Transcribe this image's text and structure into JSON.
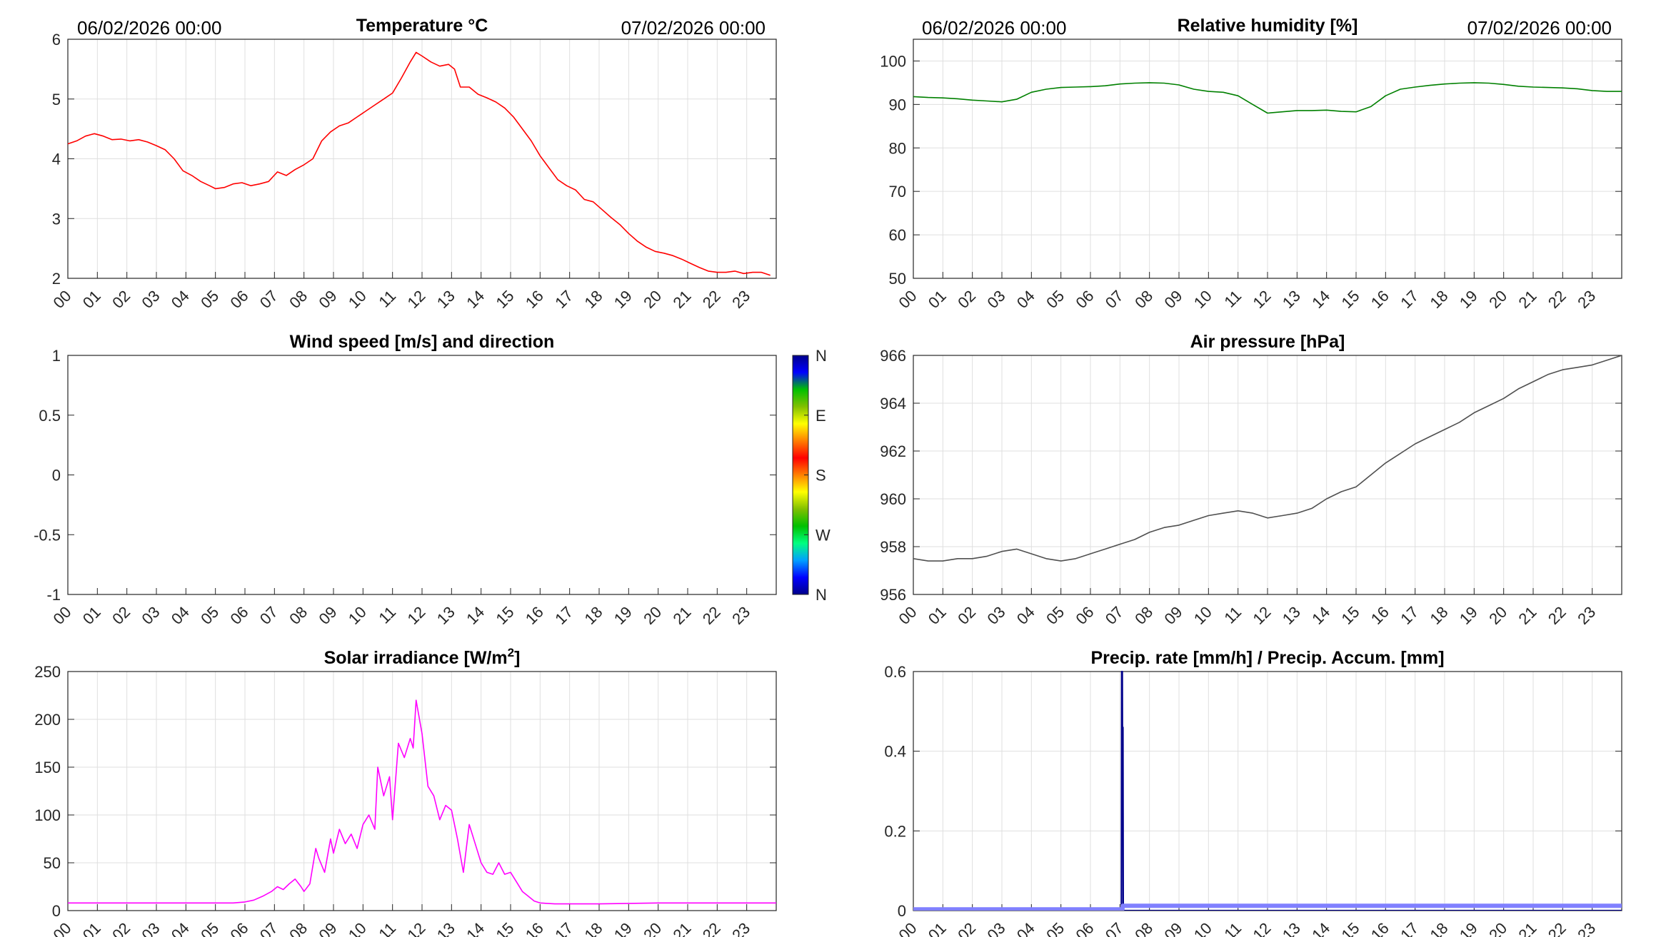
{
  "page": {
    "background": "#ffffff"
  },
  "chart_data": [
    {
      "id": "temp",
      "type": "line",
      "title": "Temperature °C",
      "date_left": "06/02/2026 00:00",
      "date_right": "07/02/2026 00:00",
      "color": "#ff0000",
      "xlim": [
        0,
        24
      ],
      "ylim": [
        2,
        6
      ],
      "yticks": [
        "2",
        "3",
        "4",
        "5",
        "6"
      ],
      "ytick_values": [
        2,
        3,
        4,
        5,
        6
      ],
      "xtick_labels": [
        "00",
        "01",
        "02",
        "03",
        "04",
        "05",
        "06",
        "07",
        "08",
        "09",
        "10",
        "11",
        "12",
        "13",
        "14",
        "15",
        "16",
        "17",
        "18",
        "19",
        "20",
        "21",
        "22",
        "23"
      ],
      "grid": true,
      "series": [
        {
          "x": [
            0,
            0.3,
            0.6,
            0.9,
            1.2,
            1.5,
            1.8,
            2.1,
            2.4,
            2.7,
            3.0,
            3.3,
            3.6,
            3.9,
            4.2,
            4.5,
            4.8,
            5.0,
            5.3,
            5.6,
            5.9,
            6.2,
            6.5,
            6.8,
            7.1,
            7.4,
            7.7,
            8.0,
            8.3,
            8.6,
            8.9,
            9.2,
            9.5,
            9.8,
            10.1,
            10.4,
            10.7,
            11.0,
            11.3,
            11.6,
            11.8,
            12.0,
            12.3,
            12.6,
            12.9,
            13.1,
            13.3,
            13.6,
            13.9,
            14.2,
            14.5,
            14.8,
            15.1,
            15.4,
            15.7,
            16.0,
            16.3,
            16.6,
            16.9,
            17.2,
            17.5,
            17.8,
            18.1,
            18.4,
            18.7,
            19.0,
            19.3,
            19.6,
            19.9,
            20.2,
            20.5,
            20.8,
            21.1,
            21.4,
            21.7,
            22.0,
            22.3,
            22.6,
            22.9,
            23.2,
            23.5,
            23.8
          ],
          "y": [
            4.25,
            4.3,
            4.38,
            4.42,
            4.38,
            4.32,
            4.33,
            4.3,
            4.32,
            4.28,
            4.22,
            4.15,
            4.0,
            3.8,
            3.72,
            3.62,
            3.55,
            3.5,
            3.52,
            3.58,
            3.6,
            3.55,
            3.58,
            3.62,
            3.78,
            3.72,
            3.82,
            3.9,
            4.0,
            4.3,
            4.45,
            4.55,
            4.6,
            4.7,
            4.8,
            4.9,
            5.0,
            5.1,
            5.35,
            5.62,
            5.78,
            5.72,
            5.62,
            5.55,
            5.58,
            5.5,
            5.2,
            5.2,
            5.08,
            5.02,
            4.95,
            4.85,
            4.7,
            4.5,
            4.3,
            4.05,
            3.85,
            3.65,
            3.55,
            3.48,
            3.32,
            3.28,
            3.15,
            3.02,
            2.9,
            2.75,
            2.62,
            2.52,
            2.45,
            2.42,
            2.38,
            2.32,
            2.25,
            2.18,
            2.12,
            2.1,
            2.1,
            2.12,
            2.08,
            2.1,
            2.1,
            2.05
          ]
        }
      ]
    },
    {
      "id": "rh",
      "type": "line",
      "title": "Relative humidity [%]",
      "date_left": "06/02/2026 00:00",
      "date_right": "07/02/2026 00:00",
      "color": "#008000",
      "xlim": [
        0,
        24
      ],
      "ylim": [
        50,
        105
      ],
      "yticks": [
        "50",
        "60",
        "70",
        "80",
        "90",
        "100"
      ],
      "ytick_values": [
        50,
        60,
        70,
        80,
        90,
        100
      ],
      "xtick_labels": [
        "00",
        "01",
        "02",
        "03",
        "04",
        "05",
        "06",
        "07",
        "08",
        "09",
        "10",
        "11",
        "12",
        "13",
        "14",
        "15",
        "16",
        "17",
        "18",
        "19",
        "20",
        "21",
        "22",
        "23"
      ],
      "grid": true,
      "series": [
        {
          "x": [
            0,
            0.5,
            1,
            1.5,
            2,
            2.5,
            3,
            3.5,
            4,
            4.5,
            5,
            5.5,
            6,
            6.5,
            7,
            7.5,
            8,
            8.5,
            9,
            9.5,
            10,
            10.5,
            11,
            11.5,
            12,
            12.5,
            13,
            13.5,
            14,
            14.5,
            15,
            15.5,
            16,
            16.5,
            17,
            17.5,
            18,
            18.5,
            19,
            19.5,
            20,
            20.5,
            21,
            21.5,
            22,
            22.5,
            23,
            23.5,
            24
          ],
          "y": [
            91.8,
            91.6,
            91.5,
            91.3,
            91.0,
            90.8,
            90.6,
            91.2,
            92.8,
            93.5,
            93.9,
            94.0,
            94.1,
            94.3,
            94.7,
            94.9,
            95.0,
            94.9,
            94.5,
            93.5,
            93.0,
            92.8,
            92.0,
            90.0,
            88.0,
            88.3,
            88.6,
            88.6,
            88.7,
            88.4,
            88.3,
            89.5,
            92.0,
            93.5,
            94.0,
            94.4,
            94.7,
            94.9,
            95.0,
            94.9,
            94.6,
            94.2,
            94.0,
            93.9,
            93.8,
            93.6,
            93.2,
            93.0,
            93.0
          ]
        }
      ]
    },
    {
      "id": "wind",
      "type": "line",
      "title": "Wind speed [m/s] and direction",
      "xlim": [
        0,
        24
      ],
      "ylim": [
        -1,
        1
      ],
      "yticks": [
        "-1",
        "-0.5",
        "0",
        "0.5",
        "1"
      ],
      "ytick_values": [
        -1,
        -0.5,
        0,
        0.5,
        1
      ],
      "xtick_labels": [
        "00",
        "01",
        "02",
        "03",
        "04",
        "05",
        "06",
        "07",
        "08",
        "09",
        "10",
        "11",
        "12",
        "13",
        "14",
        "15",
        "16",
        "17",
        "18",
        "19",
        "20",
        "21",
        "22",
        "23"
      ],
      "grid": false,
      "series": [],
      "colorbar": {
        "labels": [
          "N",
          "W",
          "S",
          "E",
          "N"
        ],
        "colors": [
          "#00008b",
          "#0000ff",
          "#00a0ff",
          "#00ff80",
          "#00c000",
          "#80c000",
          "#ffff00",
          "#ff8000",
          "#ff0000",
          "#ff8000",
          "#ffff00",
          "#80c000",
          "#00c000",
          "#0000ff",
          "#00008b"
        ]
      }
    },
    {
      "id": "pressure",
      "type": "line",
      "title": "Air pressure [hPa]",
      "color": "#505050",
      "xlim": [
        0,
        24
      ],
      "ylim": [
        956,
        966
      ],
      "yticks": [
        "956",
        "958",
        "960",
        "962",
        "964",
        "966"
      ],
      "ytick_values": [
        956,
        958,
        960,
        962,
        964,
        966
      ],
      "xtick_labels": [
        "00",
        "01",
        "02",
        "03",
        "04",
        "05",
        "06",
        "07",
        "08",
        "09",
        "10",
        "11",
        "12",
        "13",
        "14",
        "15",
        "16",
        "17",
        "18",
        "19",
        "20",
        "21",
        "22",
        "23"
      ],
      "grid": true,
      "series": [
        {
          "x": [
            0,
            0.5,
            1,
            1.5,
            2,
            2.5,
            3,
            3.5,
            4,
            4.5,
            5,
            5.5,
            6,
            6.5,
            7,
            7.5,
            8,
            8.5,
            9,
            9.5,
            10,
            10.5,
            11,
            11.5,
            12,
            12.5,
            13,
            13.5,
            14,
            14.5,
            15,
            15.5,
            16,
            16.5,
            17,
            17.5,
            18,
            18.5,
            19,
            19.5,
            20,
            20.5,
            21,
            21.5,
            22,
            22.5,
            23,
            23.5,
            24
          ],
          "y": [
            957.5,
            957.4,
            957.4,
            957.5,
            957.5,
            957.6,
            957.8,
            957.9,
            957.7,
            957.5,
            957.4,
            957.5,
            957.7,
            957.9,
            958.1,
            958.3,
            958.6,
            958.8,
            958.9,
            959.1,
            959.3,
            959.4,
            959.5,
            959.4,
            959.2,
            959.3,
            959.4,
            959.6,
            960.0,
            960.3,
            960.5,
            961.0,
            961.5,
            961.9,
            962.3,
            962.6,
            962.9,
            963.2,
            963.6,
            963.9,
            964.2,
            964.6,
            964.9,
            965.2,
            965.4,
            965.5,
            965.6,
            965.8,
            966.0
          ]
        }
      ]
    },
    {
      "id": "solar",
      "type": "line",
      "title": "Solar irradiance [W/m",
      "title_sup": "2",
      "title_end": "]",
      "color": "#ff00ff",
      "xlim": [
        0,
        24
      ],
      "ylim": [
        0,
        250
      ],
      "yticks": [
        "0",
        "50",
        "100",
        "150",
        "200",
        "250"
      ],
      "ytick_values": [
        0,
        50,
        100,
        150,
        200,
        250
      ],
      "xtick_labels": [
        "00",
        "01",
        "02",
        "03",
        "04",
        "05",
        "06",
        "07",
        "08",
        "09",
        "10",
        "11",
        "12",
        "13",
        "14",
        "15",
        "16",
        "17",
        "18",
        "19",
        "20",
        "21",
        "22",
        "23"
      ],
      "grid": true,
      "series": [
        {
          "x": [
            0,
            3,
            5.6,
            6.0,
            6.3,
            6.6,
            6.9,
            7.1,
            7.3,
            7.5,
            7.7,
            7.9,
            8.0,
            8.2,
            8.4,
            8.5,
            8.7,
            8.9,
            9.0,
            9.2,
            9.4,
            9.6,
            9.8,
            10.0,
            10.2,
            10.4,
            10.5,
            10.7,
            10.9,
            11.0,
            11.2,
            11.4,
            11.6,
            11.7,
            11.8,
            12.0,
            12.2,
            12.4,
            12.6,
            12.8,
            13.0,
            13.2,
            13.4,
            13.6,
            13.8,
            14.0,
            14.2,
            14.4,
            14.6,
            14.8,
            15.0,
            15.2,
            15.4,
            15.6,
            15.8,
            16.0,
            16.5,
            18,
            20,
            22,
            24
          ],
          "y": [
            8,
            8,
            8,
            9,
            11,
            15,
            20,
            25,
            22,
            28,
            33,
            25,
            20,
            28,
            65,
            55,
            40,
            75,
            60,
            85,
            70,
            80,
            65,
            90,
            100,
            85,
            150,
            120,
            140,
            95,
            175,
            160,
            180,
            170,
            220,
            185,
            130,
            120,
            95,
            110,
            105,
            75,
            40,
            90,
            70,
            50,
            40,
            38,
            50,
            38,
            40,
            30,
            20,
            15,
            10,
            8,
            7,
            7,
            8,
            8,
            8
          ]
        }
      ]
    },
    {
      "id": "precip",
      "type": "line",
      "title": "Precip. rate [mm/h] / Precip. Accum. [mm]",
      "color": "#00008b",
      "accum_color": "#8080ff",
      "xlim": [
        0,
        24
      ],
      "ylim": [
        0,
        0.6
      ],
      "yticks": [
        "0",
        "0.2",
        "0.4",
        "0.6"
      ],
      "ytick_values": [
        0,
        0.2,
        0.4,
        0.6
      ],
      "xtick_labels": [
        "00",
        "01",
        "02",
        "03",
        "04",
        "05",
        "06",
        "07",
        "08",
        "09",
        "10",
        "11",
        "12",
        "13",
        "14",
        "15",
        "16",
        "17",
        "18",
        "19",
        "20",
        "21",
        "22",
        "23"
      ],
      "grid": true,
      "series": [
        {
          "name": "rate",
          "x": [
            0,
            7.05,
            7.06,
            7.08,
            7.09,
            7.1,
            7.11,
            7.13,
            24
          ],
          "y": [
            0,
            0,
            0.6,
            0.6,
            0.2,
            0.46,
            0.01,
            0,
            0
          ]
        },
        {
          "name": "accum",
          "x": [
            0,
            7.08,
            7.1,
            24
          ],
          "y": [
            0.003,
            0.003,
            0.012,
            0.012
          ]
        }
      ]
    }
  ]
}
